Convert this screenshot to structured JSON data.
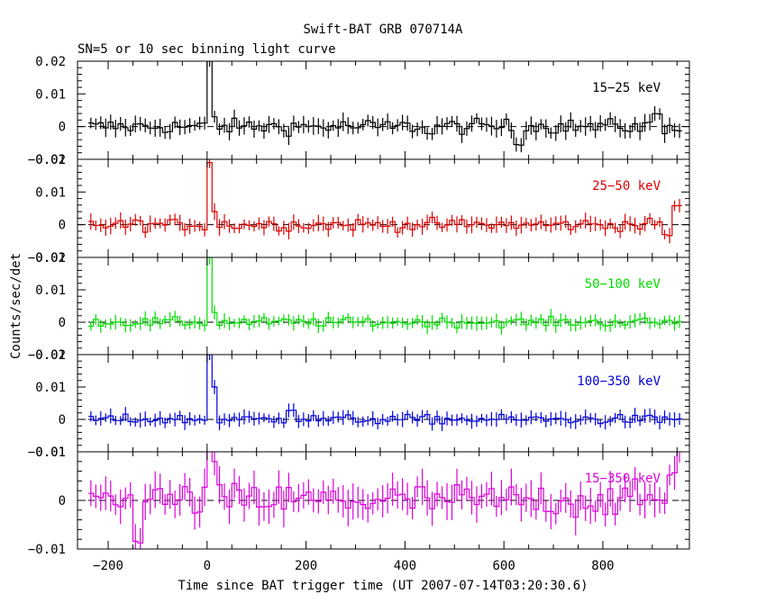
{
  "title": "Swift-BAT GRB 070714A",
  "subtitle": "SN=5 or 10 sec binning light curve",
  "xlabel": "Time since BAT trigger time (UT 2007-07-14T03:20:30.6)",
  "ylabel": "Counts/sec/det",
  "chart_data": {
    "type": "line",
    "title": "Swift-BAT GRB 070714A",
    "subtitle": "SN=5 or 10 sec binning light curve",
    "xlabel": "Time since BAT trigger time (UT 2007-07-14T03:20:30.6)",
    "ylabel": "Counts/sec/det",
    "xlim": [
      -262,
      975
    ],
    "x_ticks": [
      -200,
      0,
      200,
      400,
      600,
      800
    ],
    "x_tick_labels": [
      "−200",
      "0",
      "200",
      "400",
      "600",
      "800"
    ],
    "bin_width": 10,
    "x_start": -240,
    "x_end": 960,
    "panels": [
      {
        "name": "15−25 keV",
        "color": "#000000",
        "ylim": [
          -0.01,
          0.02
        ],
        "y_ticks": [
          -0.01,
          0,
          0.01,
          0.02
        ],
        "y_tick_labels": [
          "−0.01",
          "0",
          "0.01",
          "0.02"
        ],
        "noise": 0.0022,
        "err": 0.0022,
        "peaks": [
          [
            0,
            0.021
          ],
          [
            10,
            0.003
          ]
        ],
        "features": [
          [
            630,
            -0.005
          ],
          [
            910,
            0.004
          ],
          [
            450,
            -0.002
          ]
        ]
      },
      {
        "name": "25−50 keV",
        "color": "#dd0000",
        "ylim": [
          -0.01,
          0.02
        ],
        "y_ticks": [
          -0.01,
          0,
          0.01,
          0.02
        ],
        "y_tick_labels": [
          "−0.01",
          "0",
          "0.01",
          "0.02"
        ],
        "noise": 0.0018,
        "err": 0.002,
        "peaks": [
          [
            0,
            0.019
          ],
          [
            10,
            0.004
          ]
        ],
        "features": [
          [
            950,
            0.006
          ],
          [
            930,
            -0.003
          ]
        ]
      },
      {
        "name": "50−100 keV",
        "color": "#00dd00",
        "ylim": [
          -0.01,
          0.02
        ],
        "y_ticks": [
          -0.01,
          0,
          0.01,
          0.02
        ],
        "y_tick_labels": [
          "−0.01",
          "0",
          "0.01",
          "0.02"
        ],
        "noise": 0.0014,
        "err": 0.0018,
        "peaks": [
          [
            0,
            0.02
          ],
          [
            10,
            0.003
          ]
        ],
        "features": []
      },
      {
        "name": "100−350 keV",
        "color": "#0000dd",
        "ylim": [
          -0.01,
          0.02
        ],
        "y_ticks": [
          -0.01,
          0,
          0.01,
          0.02
        ],
        "y_tick_labels": [
          "−0.01",
          "0",
          "0.01",
          "0.02"
        ],
        "noise": 0.0014,
        "err": 0.0018,
        "peaks": [
          [
            0,
            0.02
          ],
          [
            10,
            0.01
          ]
        ],
        "features": [
          [
            170,
            0.003
          ]
        ]
      },
      {
        "name": "15−350 keV",
        "color": "#dd00dd",
        "ylim": [
          -0.01,
          0.01
        ],
        "y_ticks": [
          -0.01,
          0,
          0.01
        ],
        "y_tick_labels": [
          "−0.01",
          "0",
          "0.01"
        ],
        "noise": 0.0035,
        "err": 0.003,
        "peaks": [
          [
            0,
            0.018
          ],
          [
            10,
            0.008
          ]
        ],
        "features": [
          [
            950,
            0.01
          ],
          [
            940,
            0.005
          ],
          [
            -140,
            -0.008
          ]
        ]
      }
    ]
  }
}
